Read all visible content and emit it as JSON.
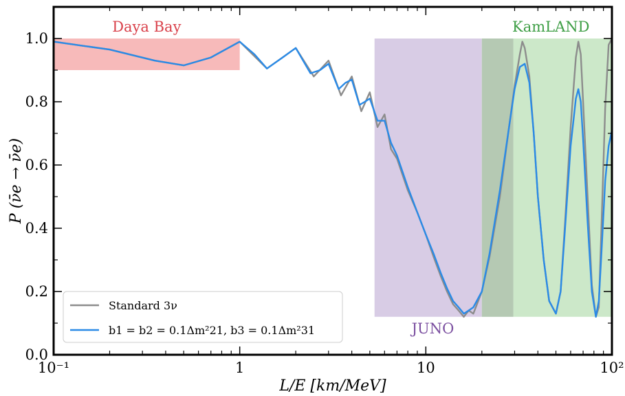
{
  "chart_data": {
    "type": "line",
    "xscale": "log",
    "xlim": [
      0.1,
      100
    ],
    "ylim": [
      0.0,
      1.1
    ],
    "xlabel": "L/E [km/MeV]",
    "ylabel": "P (ν̄e → ν̄e)",
    "x_ticks": [
      {
        "value": 0.1,
        "label": "10⁻¹"
      },
      {
        "value": 1,
        "label": "1"
      },
      {
        "value": 10,
        "label": "10"
      },
      {
        "value": 100,
        "label": "10²"
      }
    ],
    "y_ticks": [
      {
        "value": 0.0,
        "label": "0.0"
      },
      {
        "value": 0.2,
        "label": "0.2"
      },
      {
        "value": 0.4,
        "label": "0.4"
      },
      {
        "value": 0.6,
        "label": "0.6"
      },
      {
        "value": 0.8,
        "label": "0.8"
      },
      {
        "value": 1.0,
        "label": "1.0"
      }
    ],
    "grid": false,
    "legend": {
      "placement": "bottom-left",
      "entries": [
        {
          "label": "Standard 3ν",
          "color": "#8c8c8c"
        },
        {
          "label": "b1 = b2 = 0.1Δm²21, b3 = 0.1Δm²31",
          "color": "#2a8ae6"
        }
      ]
    },
    "regions": [
      {
        "name": "Daya Bay",
        "x": [
          0.1,
          1
        ],
        "y": [
          0.9,
          1.0
        ],
        "color": "#f7b6b6",
        "label_color": "#d9404a"
      },
      {
        "name": "JUNO",
        "x": [
          5.3,
          20
        ],
        "y": [
          0.12,
          1.0
        ],
        "color": "#d6c9e4",
        "label_color": "#7b4fa0"
      },
      {
        "name": "KamLAND",
        "x": [
          20,
          100
        ],
        "y": [
          0.12,
          1.0
        ],
        "color": "#c9e7c6",
        "label_color": "#3e9e45"
      }
    ],
    "series": [
      {
        "name": "Standard 3ν",
        "color": "#8c8c8c",
        "x": [
          0.1,
          0.2,
          0.35,
          0.5,
          0.7,
          1.0,
          1.4,
          2.0,
          2.5,
          3.0,
          3.5,
          4.0,
          4.5,
          5.0,
          5.5,
          6.0,
          6.5,
          7.0,
          8.0,
          9.0,
          10.0,
          11.0,
          12.0,
          13.0,
          14.0,
          15.0,
          16.0,
          17.0,
          18.0,
          20.0,
          22.0,
          25.0,
          28.0,
          30.0,
          32.0,
          33.0,
          34.0,
          36.0,
          38.0,
          40.0,
          43.0,
          46.0,
          50.0,
          53.0,
          56.0,
          60.0,
          64.0,
          66.0,
          68.0,
          70.0,
          74.0,
          78.0,
          82.0,
          85.0,
          88.0,
          92.0,
          96.0,
          100.0
        ],
        "y": [
          0.99,
          0.965,
          0.93,
          0.915,
          0.94,
          0.99,
          0.905,
          0.97,
          0.88,
          0.93,
          0.82,
          0.88,
          0.77,
          0.83,
          0.72,
          0.76,
          0.65,
          0.62,
          0.52,
          0.45,
          0.38,
          0.31,
          0.25,
          0.2,
          0.16,
          0.14,
          0.12,
          0.14,
          0.13,
          0.2,
          0.31,
          0.5,
          0.72,
          0.85,
          0.95,
          0.99,
          0.97,
          0.88,
          0.7,
          0.5,
          0.3,
          0.17,
          0.13,
          0.2,
          0.42,
          0.72,
          0.94,
          0.99,
          0.95,
          0.8,
          0.5,
          0.22,
          0.12,
          0.15,
          0.42,
          0.78,
          0.98,
          1.0
        ]
      },
      {
        "name": "b1 = b2 = 0.1Δm²21, b3 = 0.1Δm²31",
        "color": "#2a8ae6",
        "x": [
          0.1,
          0.2,
          0.35,
          0.5,
          0.7,
          1.0,
          1.2,
          1.4,
          1.7,
          2.0,
          2.4,
          2.7,
          3.0,
          3.4,
          3.7,
          4.0,
          4.4,
          4.7,
          5.0,
          5.5,
          6.0,
          6.5,
          7.0,
          8.0,
          9.0,
          10.0,
          11.0,
          12.0,
          13.0,
          14.0,
          15.0,
          16.0,
          17.0,
          18.0,
          20.0,
          22.0,
          25.0,
          28.0,
          30.0,
          32.0,
          34.0,
          36.0,
          38.0,
          40.0,
          43.0,
          46.0,
          50.0,
          53.0,
          56.0,
          60.0,
          64.0,
          66.0,
          68.0,
          70.0,
          74.0,
          78.0,
          82.0,
          85.0,
          88.0,
          92.0,
          96.0,
          100.0
        ],
        "y": [
          0.99,
          0.965,
          0.93,
          0.915,
          0.94,
          0.99,
          0.95,
          0.905,
          0.94,
          0.97,
          0.89,
          0.9,
          0.92,
          0.84,
          0.86,
          0.87,
          0.79,
          0.8,
          0.81,
          0.74,
          0.74,
          0.67,
          0.63,
          0.53,
          0.45,
          0.38,
          0.32,
          0.26,
          0.21,
          0.17,
          0.15,
          0.13,
          0.14,
          0.15,
          0.2,
          0.32,
          0.52,
          0.72,
          0.84,
          0.91,
          0.92,
          0.86,
          0.7,
          0.5,
          0.3,
          0.17,
          0.13,
          0.2,
          0.4,
          0.66,
          0.81,
          0.84,
          0.8,
          0.68,
          0.42,
          0.2,
          0.12,
          0.17,
          0.33,
          0.55,
          0.66,
          0.71
        ]
      }
    ]
  }
}
